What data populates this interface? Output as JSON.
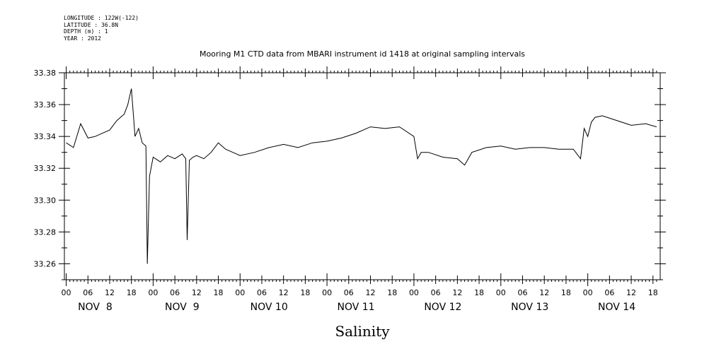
{
  "header": {
    "lines": [
      "LONGITUDE : 122W(-122)",
      "LATITUDE : 36.8N",
      "DEPTH (m) : 1",
      "YEAR : 2012"
    ]
  },
  "chart_data": {
    "type": "line",
    "title": "Mooring M1 CTD data from MBARI instrument id 1418 at original sampling intervals",
    "xlabel": "Salinity",
    "ylabel": "",
    "ylim": [
      33.25,
      33.38
    ],
    "y_ticks": [
      "33.38",
      "33.36",
      "33.34",
      "33.32",
      "33.30",
      "33.28",
      "33.26"
    ],
    "hour_tick_labels": [
      "00",
      "06",
      "12",
      "18"
    ],
    "day_labels": [
      "NOV  8",
      "NOV  9",
      "NOV 10",
      "NOV 11",
      "NOV 12",
      "NOV 13",
      "NOV 14"
    ],
    "x_unit": "hours since NOV 8 00:00",
    "xlim": [
      -0.5,
      164
    ],
    "series": [
      {
        "name": "",
        "x": [
          0,
          2,
          4,
          6,
          8,
          10,
          12,
          14,
          16,
          17,
          18,
          19,
          20,
          21,
          22,
          22.4,
          23,
          24,
          26,
          28,
          30,
          32,
          33,
          33.4,
          34,
          35,
          36,
          38,
          40,
          42,
          44,
          46,
          48,
          52,
          56,
          60,
          64,
          68,
          72,
          76,
          80,
          84,
          88,
          92,
          96,
          97,
          98,
          100,
          104,
          108,
          110,
          112,
          116,
          120,
          124,
          128,
          132,
          136,
          140,
          142,
          143,
          144,
          145,
          146,
          148,
          152,
          156,
          160,
          163
        ],
        "y": [
          33.336,
          33.333,
          33.348,
          33.339,
          33.34,
          33.342,
          33.344,
          33.35,
          33.354,
          33.36,
          33.37,
          33.34,
          33.345,
          33.336,
          33.334,
          33.26,
          33.315,
          33.327,
          33.324,
          33.328,
          33.326,
          33.329,
          33.326,
          33.275,
          33.325,
          33.327,
          33.328,
          33.326,
          33.33,
          33.336,
          33.332,
          33.33,
          33.328,
          33.33,
          33.333,
          33.335,
          33.333,
          33.336,
          33.337,
          33.339,
          33.342,
          33.346,
          33.345,
          33.346,
          33.34,
          33.326,
          33.33,
          33.33,
          33.327,
          33.326,
          33.322,
          33.33,
          33.333,
          33.334,
          33.332,
          33.333,
          33.333,
          33.332,
          33.332,
          33.326,
          33.345,
          33.34,
          33.349,
          33.352,
          33.353,
          33.35,
          33.347,
          33.348,
          33.346
        ]
      }
    ]
  }
}
